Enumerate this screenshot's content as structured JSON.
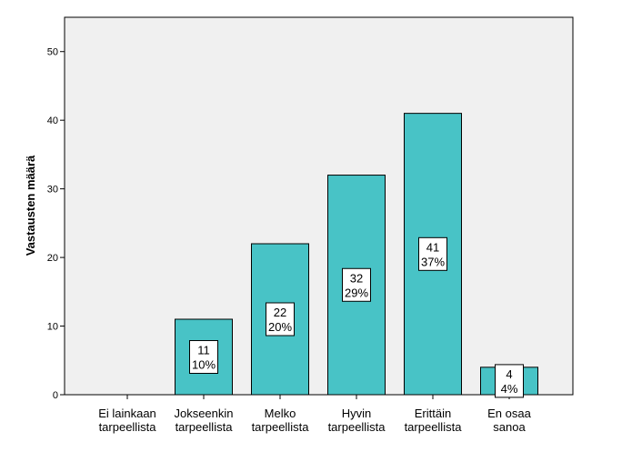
{
  "chart_data": {
    "type": "bar",
    "ylabel": "Vastausten määrä",
    "ylim": [
      0,
      55
    ],
    "yticks": [
      0,
      10,
      20,
      30,
      40,
      50
    ],
    "categories": [
      [
        "Ei lainkaan",
        "tarpeellista"
      ],
      [
        "Jokseenkin",
        "tarpeellista"
      ],
      [
        "Melko",
        "tarpeellista"
      ],
      [
        "Hyvin",
        "tarpeellista"
      ],
      [
        "Erittäin",
        "tarpeellista"
      ],
      [
        "En osaa",
        "sanoa"
      ]
    ],
    "values": [
      0,
      11,
      22,
      32,
      41,
      4
    ],
    "data_labels": [
      null,
      [
        "11",
        "10%"
      ],
      [
        "22",
        "20%"
      ],
      [
        "32",
        "29%"
      ],
      [
        "41",
        "37%"
      ],
      [
        "4",
        "4%"
      ]
    ],
    "bar_color": "#48c3c6",
    "plot_background": "#f0f0f0",
    "grid": false
  }
}
